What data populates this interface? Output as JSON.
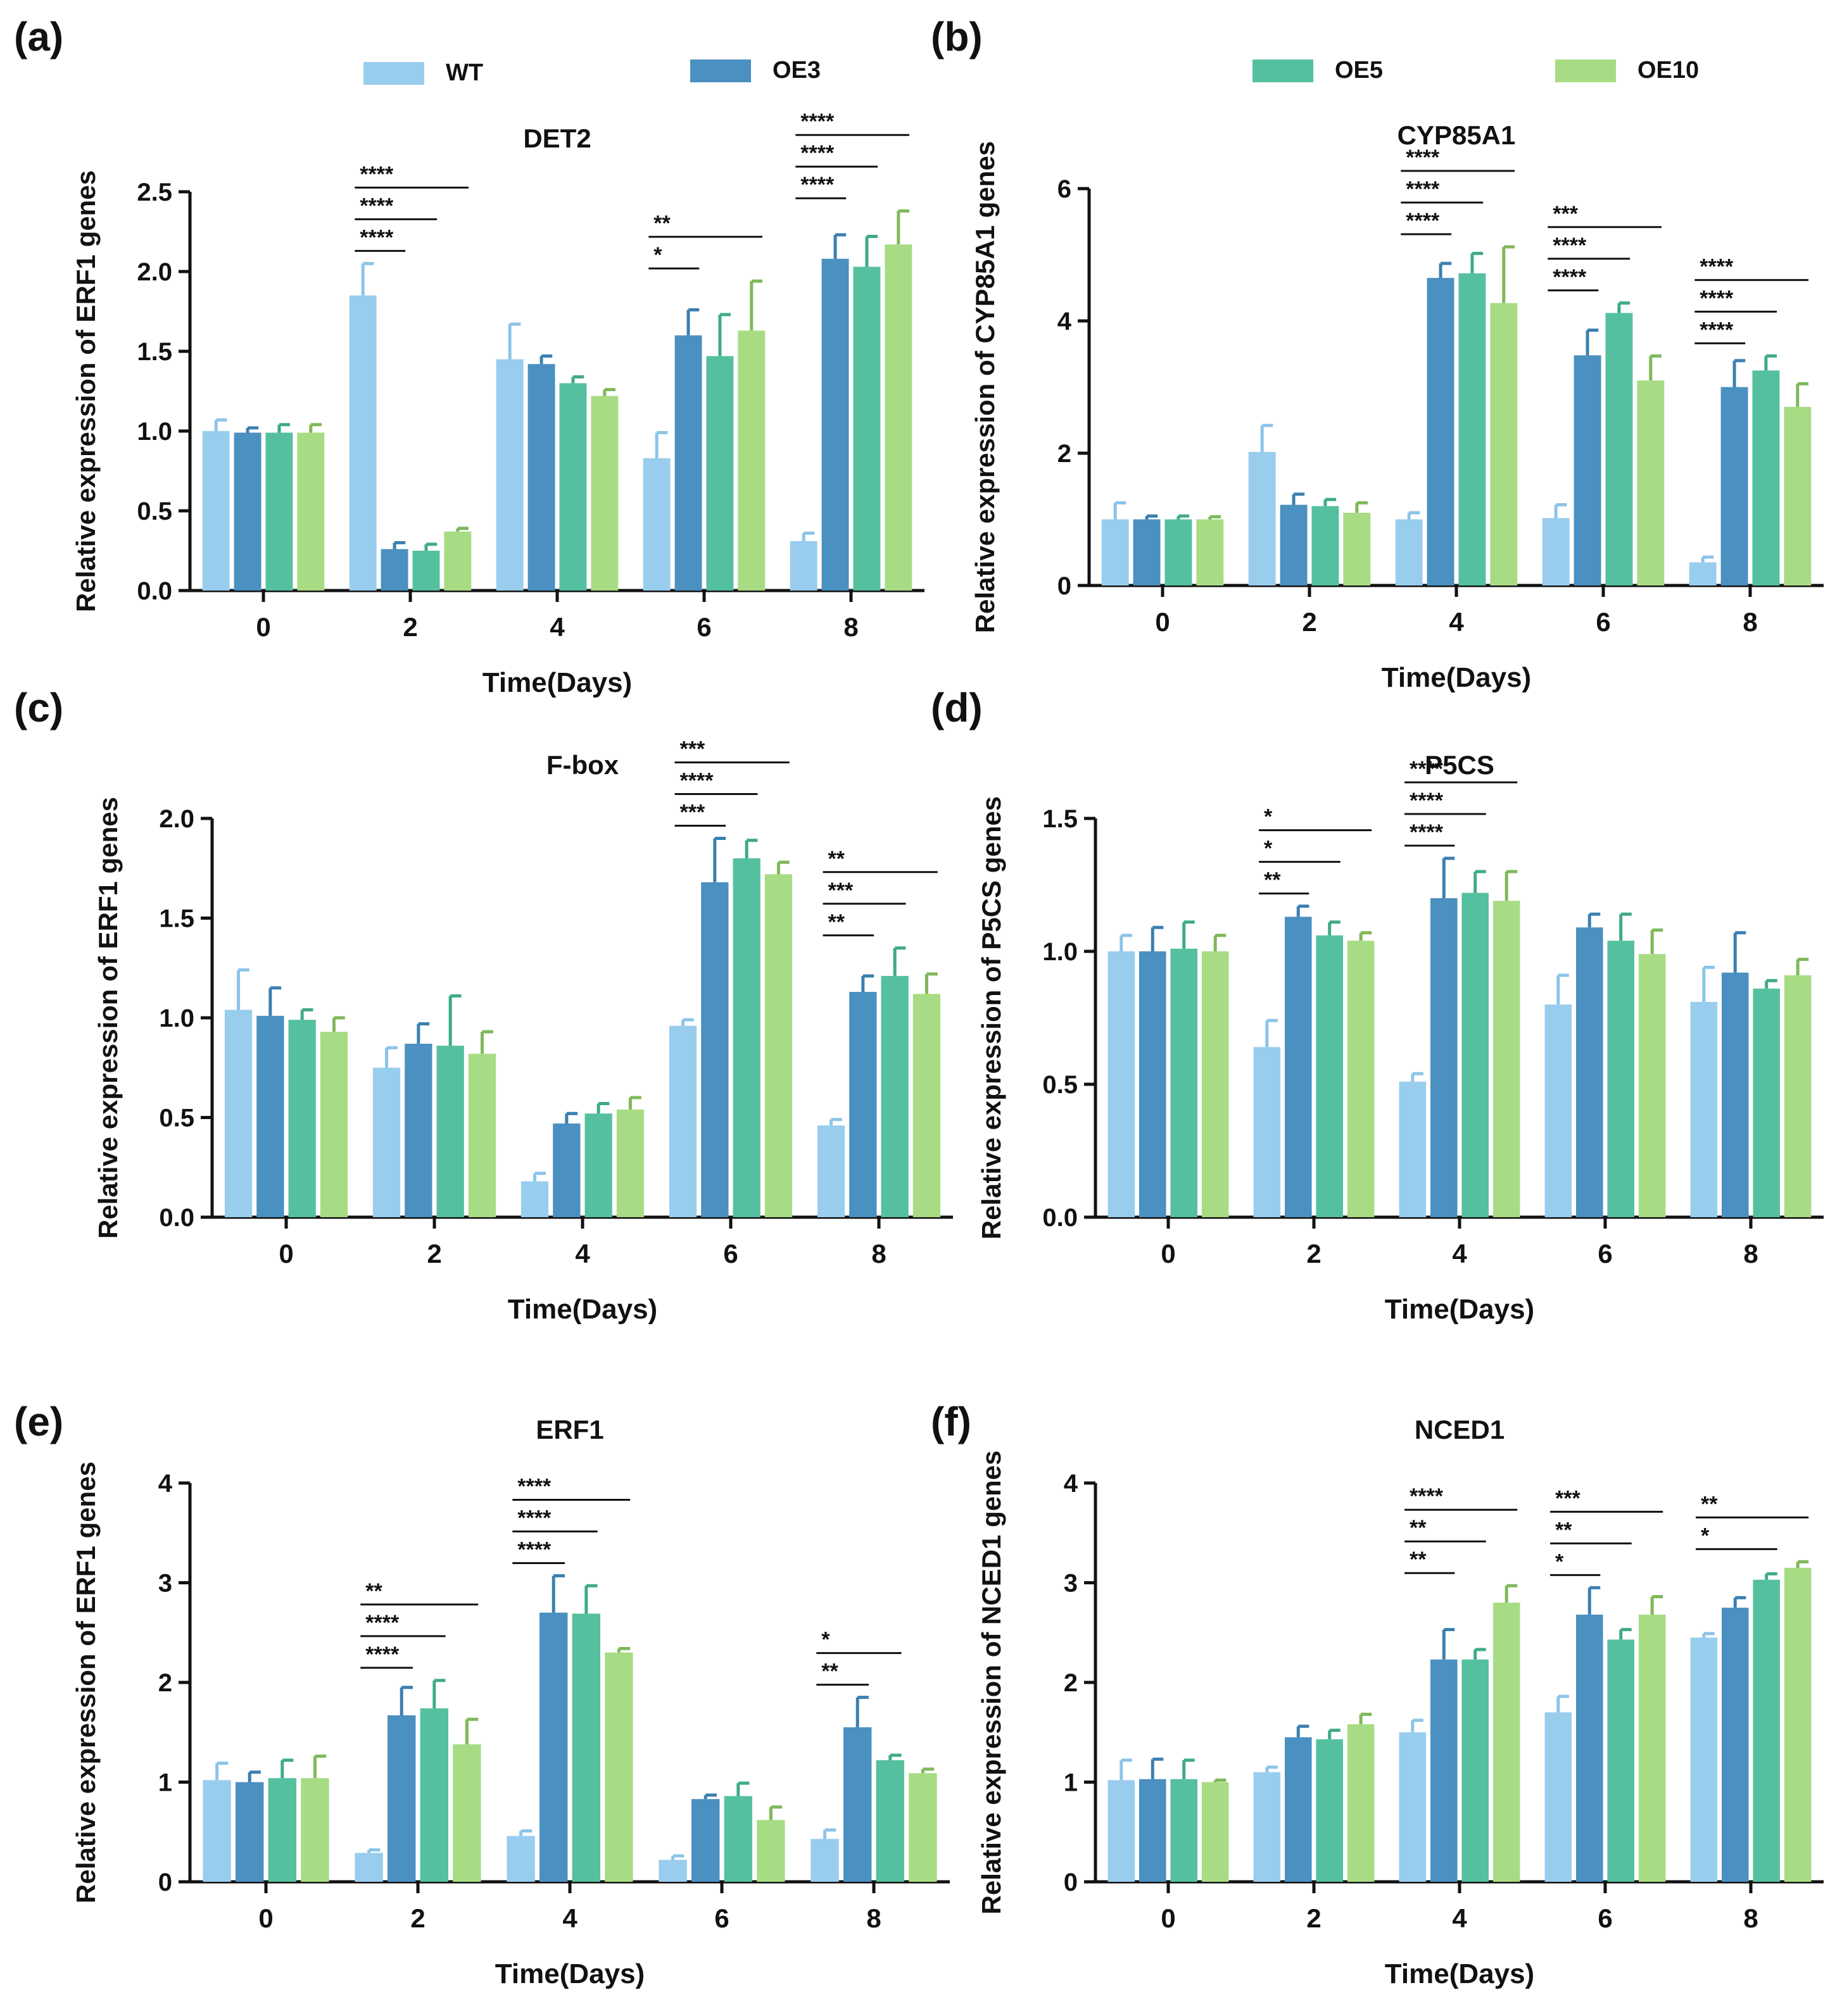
{
  "figure": {
    "legend": [
      {
        "name": "WT",
        "color": "#99cdee"
      },
      {
        "name": "OE3",
        "color": "#4a90c0"
      },
      {
        "name": "OE5",
        "color": "#55c0a0"
      },
      {
        "name": "OE10",
        "color": "#a8dc84"
      }
    ]
  },
  "chart_data": [
    {
      "panel": "(a)",
      "type": "bar",
      "title": "DET2",
      "xlabel": "Time(Days)",
      "ylabel": "Relative expression of ERF1 genes",
      "categories": [
        "0",
        "2",
        "4",
        "6",
        "8"
      ],
      "ylim": [
        0,
        2.5
      ],
      "yticks": [
        "0.0",
        "0.5",
        "1.0",
        "1.5",
        "2.0",
        "2.5"
      ],
      "series": [
        {
          "name": "WT",
          "values": [
            1.0,
            1.85,
            1.45,
            0.83,
            0.31
          ],
          "errors": [
            0.07,
            0.2,
            0.22,
            0.16,
            0.05
          ]
        },
        {
          "name": "OE3",
          "values": [
            0.99,
            0.26,
            1.42,
            1.6,
            2.08
          ],
          "errors": [
            0.03,
            0.04,
            0.05,
            0.16,
            0.15
          ]
        },
        {
          "name": "OE5",
          "values": [
            0.99,
            0.25,
            1.3,
            1.47,
            2.03
          ],
          "errors": [
            0.05,
            0.04,
            0.04,
            0.26,
            0.19
          ]
        },
        {
          "name": "OE10",
          "values": [
            0.99,
            0.37,
            1.22,
            1.63,
            2.17
          ],
          "errors": [
            0.05,
            0.02,
            0.04,
            0.31,
            0.21
          ]
        }
      ],
      "annotations": [
        {
          "group": 1,
          "from": 0,
          "to": 1,
          "level": 1,
          "text": "****"
        },
        {
          "group": 1,
          "from": 0,
          "to": 2,
          "level": 2,
          "text": "****"
        },
        {
          "group": 1,
          "from": 0,
          "to": 3,
          "level": 3,
          "text": "****"
        },
        {
          "group": 3,
          "from": 0,
          "to": 1,
          "level": 1,
          "text": "*"
        },
        {
          "group": 3,
          "from": 0,
          "to": 3,
          "level": 2,
          "text": "**"
        },
        {
          "group": 4,
          "from": 0,
          "to": 1,
          "level": 1,
          "text": "****"
        },
        {
          "group": 4,
          "from": 0,
          "to": 2,
          "level": 2,
          "text": "****"
        },
        {
          "group": 4,
          "from": 0,
          "to": 3,
          "level": 3,
          "text": "****"
        }
      ]
    },
    {
      "panel": "(b)",
      "type": "bar",
      "title": "CYP85A1",
      "xlabel": "Time(Days)",
      "ylabel": "Relative expression of CYP85A1 genes",
      "categories": [
        "0",
        "2",
        "4",
        "6",
        "8"
      ],
      "ylim": [
        0,
        6
      ],
      "yticks": [
        "0",
        "2",
        "4",
        "6"
      ],
      "series": [
        {
          "name": "WT",
          "values": [
            1.0,
            2.02,
            1.0,
            1.02,
            0.35
          ],
          "errors": [
            0.25,
            0.4,
            0.1,
            0.2,
            0.08
          ]
        },
        {
          "name": "OE3",
          "values": [
            1.0,
            1.22,
            4.65,
            3.48,
            3.0
          ],
          "errors": [
            0.05,
            0.16,
            0.22,
            0.38,
            0.4
          ]
        },
        {
          "name": "OE5",
          "values": [
            1.0,
            1.2,
            4.72,
            4.12,
            3.25
          ],
          "errors": [
            0.05,
            0.1,
            0.3,
            0.15,
            0.22
          ]
        },
        {
          "name": "OE10",
          "values": [
            1.0,
            1.1,
            4.27,
            3.1,
            2.7
          ],
          "errors": [
            0.04,
            0.15,
            0.85,
            0.37,
            0.35
          ]
        }
      ],
      "annotations": [
        {
          "group": 2,
          "from": 0,
          "to": 1,
          "level": 1,
          "text": "****"
        },
        {
          "group": 2,
          "from": 0,
          "to": 2,
          "level": 2,
          "text": "****"
        },
        {
          "group": 2,
          "from": 0,
          "to": 3,
          "level": 3,
          "text": "****"
        },
        {
          "group": 3,
          "from": 0,
          "to": 1,
          "level": 1,
          "text": "****"
        },
        {
          "group": 3,
          "from": 0,
          "to": 2,
          "level": 2,
          "text": "****"
        },
        {
          "group": 3,
          "from": 0,
          "to": 3,
          "level": 3,
          "text": "***"
        },
        {
          "group": 4,
          "from": 0,
          "to": 1,
          "level": 1,
          "text": "****"
        },
        {
          "group": 4,
          "from": 0,
          "to": 2,
          "level": 2,
          "text": "****"
        },
        {
          "group": 4,
          "from": 0,
          "to": 3,
          "level": 3,
          "text": "****"
        }
      ]
    },
    {
      "panel": "(c)",
      "type": "bar",
      "title": "F-box",
      "xlabel": "Time(Days)",
      "ylabel": "Relative expression of ERF1 genes",
      "categories": [
        "0",
        "2",
        "4",
        "6",
        "8"
      ],
      "ylim": [
        0,
        2.0
      ],
      "yticks": [
        "0.0",
        "0.5",
        "1.0",
        "1.5",
        "2.0"
      ],
      "series": [
        {
          "name": "WT",
          "values": [
            1.04,
            0.75,
            0.18,
            0.96,
            0.46
          ],
          "errors": [
            0.2,
            0.1,
            0.04,
            0.03,
            0.03
          ]
        },
        {
          "name": "OE3",
          "values": [
            1.01,
            0.87,
            0.47,
            1.68,
            1.13
          ],
          "errors": [
            0.14,
            0.1,
            0.05,
            0.22,
            0.08
          ]
        },
        {
          "name": "OE5",
          "values": [
            0.99,
            0.86,
            0.52,
            1.8,
            1.21
          ],
          "errors": [
            0.05,
            0.25,
            0.05,
            0.09,
            0.14
          ]
        },
        {
          "name": "OE10",
          "values": [
            0.93,
            0.82,
            0.54,
            1.72,
            1.12
          ],
          "errors": [
            0.07,
            0.11,
            0.06,
            0.06,
            0.1
          ]
        }
      ],
      "annotations": [
        {
          "group": 3,
          "from": 0,
          "to": 1,
          "level": 1,
          "text": "***"
        },
        {
          "group": 3,
          "from": 0,
          "to": 2,
          "level": 2,
          "text": "****"
        },
        {
          "group": 3,
          "from": 0,
          "to": 3,
          "level": 3,
          "text": "***"
        },
        {
          "group": 4,
          "from": 0,
          "to": 1,
          "level": 1,
          "text": "**"
        },
        {
          "group": 4,
          "from": 0,
          "to": 2,
          "level": 2,
          "text": "***"
        },
        {
          "group": 4,
          "from": 0,
          "to": 3,
          "level": 3,
          "text": "**"
        }
      ]
    },
    {
      "panel": "(d)",
      "type": "bar",
      "title": "P5CS",
      "xlabel": "Time(Days)",
      "ylabel": "Relative expression of P5CS genes",
      "categories": [
        "0",
        "2",
        "4",
        "6",
        "8"
      ],
      "ylim": [
        0,
        1.5
      ],
      "yticks": [
        "0.0",
        "0.5",
        "1.0",
        "1.5"
      ],
      "series": [
        {
          "name": "WT",
          "values": [
            1.0,
            0.64,
            0.51,
            0.8,
            0.81
          ],
          "errors": [
            0.06,
            0.1,
            0.03,
            0.11,
            0.13
          ]
        },
        {
          "name": "OE3",
          "values": [
            1.0,
            1.13,
            1.2,
            1.09,
            0.92
          ],
          "errors": [
            0.09,
            0.04,
            0.15,
            0.05,
            0.15
          ]
        },
        {
          "name": "OE5",
          "values": [
            1.01,
            1.06,
            1.22,
            1.04,
            0.86
          ],
          "errors": [
            0.1,
            0.05,
            0.08,
            0.1,
            0.03
          ]
        },
        {
          "name": "OE10",
          "values": [
            1.0,
            1.04,
            1.19,
            0.99,
            0.91
          ],
          "errors": [
            0.06,
            0.03,
            0.11,
            0.09,
            0.06
          ]
        }
      ],
      "annotations": [
        {
          "group": 1,
          "from": 0,
          "to": 1,
          "level": 1,
          "text": "**"
        },
        {
          "group": 1,
          "from": 0,
          "to": 2,
          "level": 2,
          "text": "*"
        },
        {
          "group": 1,
          "from": 0,
          "to": 3,
          "level": 3,
          "text": "*"
        },
        {
          "group": 2,
          "from": 0,
          "to": 1,
          "level": 1,
          "text": "****"
        },
        {
          "group": 2,
          "from": 0,
          "to": 2,
          "level": 2,
          "text": "****"
        },
        {
          "group": 2,
          "from": 0,
          "to": 3,
          "level": 3,
          "text": "****"
        }
      ]
    },
    {
      "panel": "(e)",
      "type": "bar",
      "title": "ERF1",
      "xlabel": "Time(Days)",
      "ylabel": "Relative expression of ERF1 genes",
      "categories": [
        "0",
        "2",
        "4",
        "6",
        "8"
      ],
      "ylim": [
        0,
        4
      ],
      "yticks": [
        "0",
        "1",
        "2",
        "3",
        "4"
      ],
      "series": [
        {
          "name": "WT",
          "values": [
            1.02,
            0.29,
            0.46,
            0.22,
            0.43
          ],
          "errors": [
            0.17,
            0.03,
            0.05,
            0.04,
            0.09
          ]
        },
        {
          "name": "OE3",
          "values": [
            1.0,
            1.67,
            2.7,
            0.83,
            1.55
          ],
          "errors": [
            0.1,
            0.28,
            0.37,
            0.04,
            0.3
          ]
        },
        {
          "name": "OE5",
          "values": [
            1.04,
            1.74,
            2.69,
            0.86,
            1.22
          ],
          "errors": [
            0.18,
            0.28,
            0.28,
            0.13,
            0.05
          ]
        },
        {
          "name": "OE10",
          "values": [
            1.04,
            1.38,
            2.3,
            0.62,
            1.09
          ],
          "errors": [
            0.22,
            0.25,
            0.04,
            0.13,
            0.04
          ]
        }
      ],
      "annotations": [
        {
          "group": 1,
          "from": 0,
          "to": 1,
          "level": 1,
          "text": "****"
        },
        {
          "group": 1,
          "from": 0,
          "to": 2,
          "level": 2,
          "text": "****"
        },
        {
          "group": 1,
          "from": 0,
          "to": 3,
          "level": 3,
          "text": "**"
        },
        {
          "group": 2,
          "from": 0,
          "to": 1,
          "level": 1,
          "text": "****"
        },
        {
          "group": 2,
          "from": 0,
          "to": 2,
          "level": 2,
          "text": "****"
        },
        {
          "group": 2,
          "from": 0,
          "to": 3,
          "level": 3,
          "text": "****"
        },
        {
          "group": 4,
          "from": 0,
          "to": 1,
          "level": 1,
          "text": "**"
        },
        {
          "group": 4,
          "from": 0,
          "to": 2,
          "level": 2,
          "text": "*"
        }
      ]
    },
    {
      "panel": "(f)",
      "type": "bar",
      "title": "NCED1",
      "xlabel": "Time(Days)",
      "ylabel": "Relative expression of NCED1 genes",
      "categories": [
        "0",
        "2",
        "4",
        "6",
        "8"
      ],
      "ylim": [
        0,
        4
      ],
      "yticks": [
        "0",
        "1",
        "2",
        "3",
        "4"
      ],
      "series": [
        {
          "name": "WT",
          "values": [
            1.02,
            1.1,
            1.5,
            1.7,
            2.45
          ],
          "errors": [
            0.2,
            0.05,
            0.12,
            0.16,
            0.04
          ]
        },
        {
          "name": "OE3",
          "values": [
            1.03,
            1.45,
            2.23,
            2.68,
            2.75
          ],
          "errors": [
            0.2,
            0.11,
            0.3,
            0.27,
            0.1
          ]
        },
        {
          "name": "OE5",
          "values": [
            1.03,
            1.43,
            2.23,
            2.43,
            3.03
          ],
          "errors": [
            0.19,
            0.09,
            0.1,
            0.1,
            0.06
          ]
        },
        {
          "name": "OE10",
          "values": [
            1.0,
            1.58,
            2.8,
            2.68,
            3.15
          ],
          "errors": [
            0.02,
            0.1,
            0.17,
            0.18,
            0.06
          ]
        }
      ],
      "annotations": [
        {
          "group": 2,
          "from": 0,
          "to": 1,
          "level": 1,
          "text": "**"
        },
        {
          "group": 2,
          "from": 0,
          "to": 2,
          "level": 2,
          "text": "**"
        },
        {
          "group": 2,
          "from": 0,
          "to": 3,
          "level": 3,
          "text": "****"
        },
        {
          "group": 3,
          "from": 0,
          "to": 1,
          "level": 1,
          "text": "*"
        },
        {
          "group": 3,
          "from": 0,
          "to": 2,
          "level": 2,
          "text": "**"
        },
        {
          "group": 3,
          "from": 0,
          "to": 3,
          "level": 3,
          "text": "***"
        },
        {
          "group": 4,
          "from": 0,
          "to": 2,
          "level": 1,
          "text": "*"
        },
        {
          "group": 4,
          "from": 0,
          "to": 3,
          "level": 2,
          "text": "**"
        }
      ]
    }
  ]
}
